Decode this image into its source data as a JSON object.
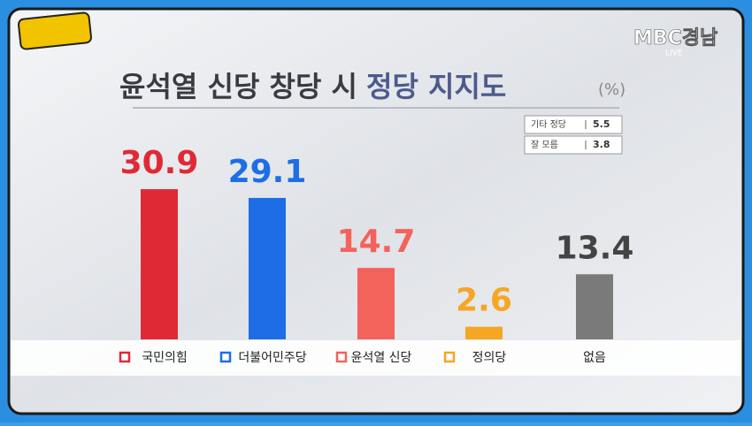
{
  "broadcaster": {
    "name": "MBC경남",
    "status": "LIVE"
  },
  "chart_data": {
    "type": "bar",
    "title": "윤석열 신당 창당 시",
    "title_highlight": "정당 지지도",
    "unit": "(%)",
    "categories": [
      "국민의힘",
      "더불어민주당",
      "윤석열 신당",
      "정의당",
      "없음"
    ],
    "values": [
      30.9,
      29.1,
      14.7,
      2.6,
      13.4
    ],
    "colors": [
      "#df2a36",
      "#1d6ee6",
      "#f4625c",
      "#f5a623",
      "#7a7a7a"
    ],
    "notes": [
      {
        "label": "기타 정당",
        "value": 5.5
      },
      {
        "label": "잘 모름",
        "value": 3.8
      }
    ]
  }
}
